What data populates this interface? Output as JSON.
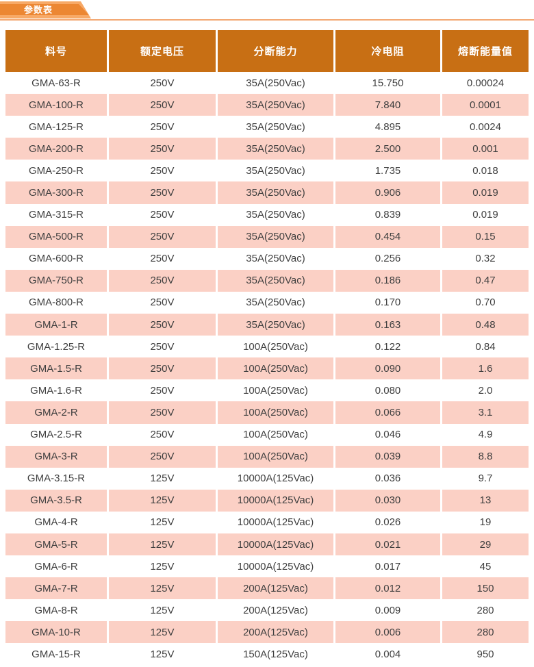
{
  "tab": {
    "label": "参数表"
  },
  "colors": {
    "header_bg": "#C86F14",
    "header_text": "#FFFFFF",
    "row_alt_bg": "#FBD0C5",
    "tab_front": "#EC8733",
    "tab_back": "#F7A967",
    "underline": "#F3A873",
    "text": "#3F3F3F"
  },
  "table": {
    "headers": [
      "料号",
      "额定电压",
      "分断能力",
      "冷电阻",
      "熔断能量值"
    ],
    "rows": [
      [
        "GMA-63-R",
        "250V",
        "35A(250Vac)",
        "15.750",
        "0.00024"
      ],
      [
        "GMA-100-R",
        "250V",
        "35A(250Vac)",
        "7.840",
        "0.0001"
      ],
      [
        "GMA-125-R",
        "250V",
        "35A(250Vac)",
        "4.895",
        "0.0024"
      ],
      [
        "GMA-200-R",
        "250V",
        "35A(250Vac)",
        "2.500",
        "0.001"
      ],
      [
        "GMA-250-R",
        "250V",
        "35A(250Vac)",
        "1.735",
        "0.018"
      ],
      [
        "GMA-300-R",
        "250V",
        "35A(250Vac)",
        "0.906",
        "0.019"
      ],
      [
        "GMA-315-R",
        "250V",
        "35A(250Vac)",
        "0.839",
        "0.019"
      ],
      [
        "GMA-500-R",
        "250V",
        "35A(250Vac)",
        "0.454",
        "0.15"
      ],
      [
        "GMA-600-R",
        "250V",
        "35A(250Vac)",
        "0.256",
        "0.32"
      ],
      [
        "GMA-750-R",
        "250V",
        "35A(250Vac)",
        "0.186",
        "0.47"
      ],
      [
        "GMA-800-R",
        "250V",
        "35A(250Vac)",
        "0.170",
        "0.70"
      ],
      [
        "GMA-1-R",
        "250V",
        "35A(250Vac)",
        "0.163",
        "0.48"
      ],
      [
        "GMA-1.25-R",
        "250V",
        "100A(250Vac)",
        "0.122",
        "0.84"
      ],
      [
        "GMA-1.5-R",
        "250V",
        "100A(250Vac)",
        "0.090",
        "1.6"
      ],
      [
        "GMA-1.6-R",
        "250V",
        "100A(250Vac)",
        "0.080",
        "2.0"
      ],
      [
        "GMA-2-R",
        "250V",
        "100A(250Vac)",
        "0.066",
        "3.1"
      ],
      [
        "GMA-2.5-R",
        "250V",
        "100A(250Vac)",
        "0.046",
        "4.9"
      ],
      [
        "GMA-3-R",
        "250V",
        "100A(250Vac)",
        "0.039",
        "8.8"
      ],
      [
        "GMA-3.15-R",
        "125V",
        "10000A(125Vac)",
        "0.036",
        "9.7"
      ],
      [
        "GMA-3.5-R",
        "125V",
        "10000A(125Vac)",
        "0.030",
        "13"
      ],
      [
        "GMA-4-R",
        "125V",
        "10000A(125Vac)",
        "0.026",
        "19"
      ],
      [
        "GMA-5-R",
        "125V",
        "10000A(125Vac)",
        "0.021",
        "29"
      ],
      [
        "GMA-6-R",
        "125V",
        "10000A(125Vac)",
        "0.017",
        "45"
      ],
      [
        "GMA-7-R",
        "125V",
        "200A(125Vac)",
        "0.012",
        "150"
      ],
      [
        "GMA-8-R",
        "125V",
        "200A(125Vac)",
        "0.009",
        "280"
      ],
      [
        "GMA-10-R",
        "125V",
        "200A(125Vac)",
        "0.006",
        "280"
      ],
      [
        "GMA-15-R",
        "125V",
        "150A(125Vac)",
        "0.004",
        "950"
      ]
    ]
  }
}
